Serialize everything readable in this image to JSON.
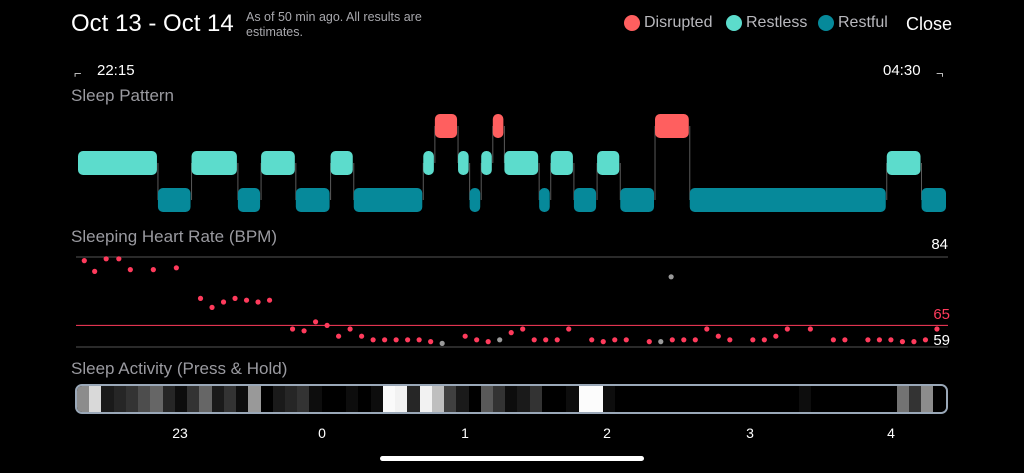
{
  "header": {
    "title": "Oct 13 - Oct 14",
    "subtitle": "As of 50 min ago. All results are estimates.",
    "close_label": "Close"
  },
  "legend": [
    {
      "label": "Disrupted",
      "color": "#ff5f5f"
    },
    {
      "label": "Restless",
      "color": "#5cdccc"
    },
    {
      "label": "Restful",
      "color": "#06899a"
    }
  ],
  "time_range": {
    "start": "22:15",
    "end": "04:30"
  },
  "sleep_pattern": {
    "title": "Sleep Pattern",
    "states": {
      "disrupted": "#ff5f5f",
      "restless": "#5cdccc",
      "restful": "#06899a"
    },
    "segments": [
      {
        "state": "restless",
        "start_min": 0,
        "end_min": 69
      },
      {
        "state": "restful",
        "start_min": 69,
        "end_min": 98
      },
      {
        "state": "restless",
        "start_min": 98,
        "end_min": 138
      },
      {
        "state": "restful",
        "start_min": 138,
        "end_min": 158
      },
      {
        "state": "restless",
        "start_min": 158,
        "end_min": 188
      },
      {
        "state": "restful",
        "start_min": 188,
        "end_min": 218
      },
      {
        "state": "restless",
        "start_min": 218,
        "end_min": 238
      },
      {
        "state": "restful",
        "start_min": 238,
        "end_min": 298
      },
      {
        "state": "restless",
        "start_min": 298,
        "end_min": 308
      },
      {
        "state": "disrupted",
        "start_min": 308,
        "end_min": 328
      },
      {
        "state": "restless",
        "start_min": 328,
        "end_min": 338
      },
      {
        "state": "restful",
        "start_min": 338,
        "end_min": 348
      },
      {
        "state": "restless",
        "start_min": 348,
        "end_min": 358
      },
      {
        "state": "disrupted",
        "start_min": 358,
        "end_min": 368
      },
      {
        "state": "restless",
        "start_min": 368,
        "end_min": 398
      },
      {
        "state": "restful",
        "start_min": 398,
        "end_min": 408
      },
      {
        "state": "restless",
        "start_min": 408,
        "end_min": 428
      },
      {
        "state": "restful",
        "start_min": 428,
        "end_min": 448
      },
      {
        "state": "restless",
        "start_min": 448,
        "end_min": 468
      },
      {
        "state": "restful",
        "start_min": 468,
        "end_min": 498
      },
      {
        "state": "disrupted",
        "start_min": 498,
        "end_min": 528
      },
      {
        "state": "restful",
        "start_min": 528,
        "end_min": 698
      },
      {
        "state": "restless",
        "start_min": 698,
        "end_min": 728
      },
      {
        "state": "restful",
        "start_min": 728,
        "end_min": 750
      }
    ]
  },
  "heart_rate": {
    "title": "Sleeping Heart Rate (BPM)",
    "max_label": "84",
    "avg_label": "65",
    "min_label": "59",
    "max": 84,
    "avg": 65,
    "min": 59,
    "dot_color": "#ff3b5c",
    "outlier_color": "#9a9a9a",
    "points": [
      {
        "t": 2,
        "v": 83
      },
      {
        "t": 11,
        "v": 80
      },
      {
        "t": 21,
        "v": 83.5
      },
      {
        "t": 32,
        "v": 83.5
      },
      {
        "t": 42,
        "v": 80.5
      },
      {
        "t": 62,
        "v": 80.5
      },
      {
        "t": 82,
        "v": 81
      },
      {
        "t": 103,
        "v": 72.5
      },
      {
        "t": 113,
        "v": 70
      },
      {
        "t": 123,
        "v": 71.5
      },
      {
        "t": 133,
        "v": 72.5
      },
      {
        "t": 143,
        "v": 72
      },
      {
        "t": 153,
        "v": 71.5
      },
      {
        "t": 163,
        "v": 72
      },
      {
        "t": 183,
        "v": 64
      },
      {
        "t": 193,
        "v": 63.5
      },
      {
        "t": 203,
        "v": 66
      },
      {
        "t": 213,
        "v": 65
      },
      {
        "t": 223,
        "v": 62
      },
      {
        "t": 233,
        "v": 64
      },
      {
        "t": 243,
        "v": 62
      },
      {
        "t": 253,
        "v": 61
      },
      {
        "t": 263,
        "v": 61
      },
      {
        "t": 273,
        "v": 61
      },
      {
        "t": 283,
        "v": 61
      },
      {
        "t": 293,
        "v": 61
      },
      {
        "t": 303,
        "v": 60.5
      },
      {
        "t": 313,
        "v": 60,
        "outlier": true
      },
      {
        "t": 333,
        "v": 62
      },
      {
        "t": 343,
        "v": 61
      },
      {
        "t": 353,
        "v": 60.5
      },
      {
        "t": 363,
        "v": 61,
        "outlier": true
      },
      {
        "t": 373,
        "v": 63
      },
      {
        "t": 383,
        "v": 64
      },
      {
        "t": 393,
        "v": 61
      },
      {
        "t": 403,
        "v": 61
      },
      {
        "t": 413,
        "v": 61
      },
      {
        "t": 423,
        "v": 64
      },
      {
        "t": 443,
        "v": 61
      },
      {
        "t": 453,
        "v": 60.5
      },
      {
        "t": 463,
        "v": 61
      },
      {
        "t": 473,
        "v": 61
      },
      {
        "t": 493,
        "v": 60.5
      },
      {
        "t": 503,
        "v": 60.5,
        "outlier": true
      },
      {
        "t": 513,
        "v": 61
      },
      {
        "t": 512,
        "v": 78.5,
        "outlier": true
      },
      {
        "t": 523,
        "v": 61
      },
      {
        "t": 533,
        "v": 61
      },
      {
        "t": 543,
        "v": 64
      },
      {
        "t": 553,
        "v": 62
      },
      {
        "t": 563,
        "v": 61
      },
      {
        "t": 583,
        "v": 61
      },
      {
        "t": 593,
        "v": 61
      },
      {
        "t": 603,
        "v": 62
      },
      {
        "t": 613,
        "v": 64
      },
      {
        "t": 633,
        "v": 64
      },
      {
        "t": 653,
        "v": 61
      },
      {
        "t": 663,
        "v": 61
      },
      {
        "t": 683,
        "v": 61
      },
      {
        "t": 693,
        "v": 61
      },
      {
        "t": 703,
        "v": 61
      },
      {
        "t": 713,
        "v": 60.5
      },
      {
        "t": 723,
        "v": 60.5
      },
      {
        "t": 733,
        "v": 61
      },
      {
        "t": 743,
        "v": 64
      }
    ]
  },
  "activity": {
    "title": "Sleep Activity (Press & Hold)",
    "levels": [
      0.55,
      0.85,
      0.1,
      0.15,
      0.2,
      0.3,
      0.4,
      0.15,
      0.05,
      0.2,
      0.4,
      0.1,
      0.2,
      0.05,
      0.6,
      0.0,
      0.1,
      0.15,
      0.2,
      0.05,
      0.0,
      0.0,
      0.05,
      0.0,
      0.05,
      0.98,
      0.95,
      0.15,
      0.95,
      0.75,
      0.25,
      0.1,
      0.0,
      0.35,
      0.2,
      0.05,
      0.1,
      0.2,
      0.0,
      0.0,
      0.05,
      0.99,
      0.99,
      0.05,
      0.0,
      0.0,
      0.0,
      0.0,
      0.0,
      0.0,
      0.0,
      0.0,
      0.0,
      0.0,
      0.0,
      0.0,
      0.0,
      0.0,
      0.0,
      0.05,
      0.0,
      0.0,
      0.0,
      0.0,
      0.0,
      0.0,
      0.0,
      0.45,
      0.2,
      0.55,
      0.0
    ],
    "hours": [
      "23",
      "0",
      "1",
      "2",
      "3",
      "4"
    ],
    "hour_offsets_min": [
      45,
      105,
      165,
      225,
      285,
      345
    ]
  }
}
